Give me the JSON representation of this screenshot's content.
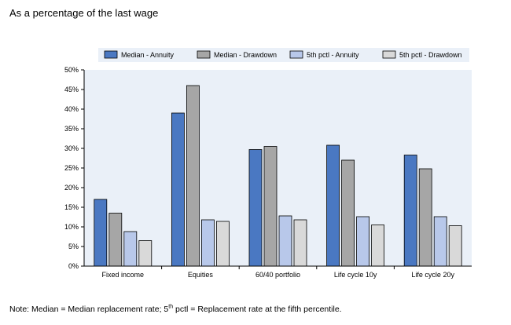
{
  "subtitle": "As a percentage of the last wage",
  "note": {
    "prefix": "Note: Median = Median replacement rate; 5",
    "sup": "th",
    "suffix": " pctl = Replacement rate at the fifth percentile."
  },
  "chart_data": {
    "type": "bar",
    "categories": [
      "Fixed income",
      "Equities",
      "60/40 portfolio",
      "Life cycle 10y",
      "Life cycle 20y"
    ],
    "series": [
      {
        "name": "Median - Annuity",
        "color": "#4a78c2",
        "values": [
          17,
          39,
          29.7,
          30.8,
          28.3
        ]
      },
      {
        "name": "Median - Drawdown",
        "color": "#a6a6a6",
        "values": [
          13.5,
          46,
          30.5,
          27,
          24.8
        ]
      },
      {
        "name": "5th pctl - Annuity",
        "color": "#b8c8ea",
        "values": [
          8.8,
          11.8,
          12.8,
          12.6,
          12.6
        ]
      },
      {
        "name": "5th pctl - Drawdown",
        "color": "#d9d9d9",
        "values": [
          6.5,
          11.4,
          11.8,
          10.5,
          10.3
        ]
      }
    ],
    "ylim": [
      0,
      50
    ],
    "yticks": [
      0,
      5,
      10,
      15,
      20,
      25,
      30,
      35,
      40,
      45,
      50
    ],
    "ytick_labels": [
      "0%",
      "5%",
      "10%",
      "15%",
      "20%",
      "25%",
      "30%",
      "35%",
      "40%",
      "45%",
      "50%"
    ],
    "legend_position": "top",
    "grid": false
  }
}
